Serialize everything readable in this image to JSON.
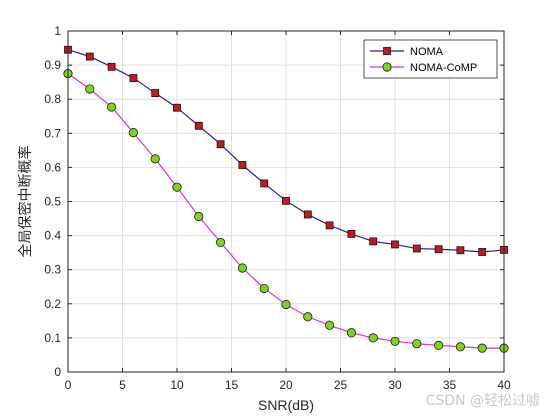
{
  "chart_data": {
    "type": "line",
    "title": "",
    "xlabel": "SNR(dB)",
    "ylabel": "全局保密中断概率",
    "xlim": [
      0,
      40
    ],
    "ylim": [
      0,
      1
    ],
    "xticks": [
      0,
      5,
      10,
      15,
      20,
      25,
      30,
      35,
      40
    ],
    "yticks": [
      0,
      0.1,
      0.2,
      0.3,
      0.4,
      0.5,
      0.6,
      0.7,
      0.8,
      0.9,
      1
    ],
    "grid": true,
    "legend_position": "top-right",
    "x": [
      0,
      2,
      4,
      6,
      8,
      10,
      12,
      14,
      16,
      18,
      20,
      22,
      24,
      26,
      28,
      30,
      32,
      34,
      36,
      38,
      40
    ],
    "series": [
      {
        "name": "NOMA",
        "line_color": "#1f1fb4",
        "marker": "square",
        "marker_color": "#b22222",
        "values": [
          0.945,
          0.925,
          0.895,
          0.862,
          0.818,
          0.775,
          0.722,
          0.668,
          0.607,
          0.553,
          0.502,
          0.462,
          0.43,
          0.405,
          0.383,
          0.374,
          0.362,
          0.36,
          0.357,
          0.352,
          0.358
        ]
      },
      {
        "name": "NOMA-CoMP",
        "line_color": "#e02ee0",
        "marker": "circle",
        "marker_color": "#7ed321",
        "values": [
          0.875,
          0.83,
          0.777,
          0.702,
          0.625,
          0.542,
          0.456,
          0.38,
          0.305,
          0.245,
          0.198,
          0.162,
          0.137,
          0.115,
          0.1,
          0.09,
          0.083,
          0.078,
          0.074,
          0.07,
          0.07
        ]
      }
    ]
  },
  "watermark": "CSDN @轻松过嘘"
}
